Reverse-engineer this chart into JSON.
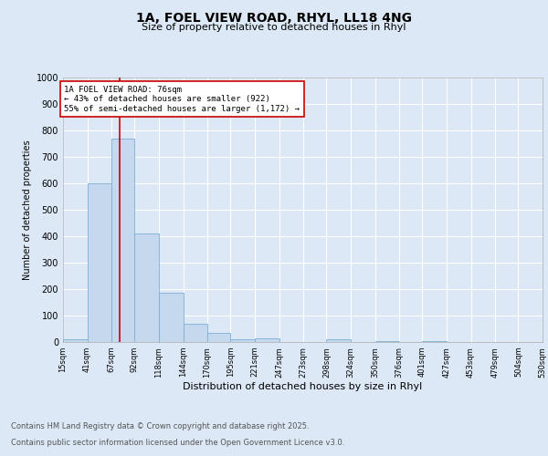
{
  "title_line1": "1A, FOEL VIEW ROAD, RHYL, LL18 4NG",
  "title_line2": "Size of property relative to detached houses in Rhyl",
  "xlabel": "Distribution of detached houses by size in Rhyl",
  "ylabel": "Number of detached properties",
  "bar_edges": [
    15,
    41,
    67,
    92,
    118,
    144,
    170,
    195,
    221,
    247,
    273,
    298,
    324,
    350,
    376,
    401,
    427,
    453,
    479,
    504,
    530
  ],
  "bar_heights": [
    10,
    600,
    770,
    410,
    185,
    70,
    35,
    10,
    15,
    0,
    0,
    10,
    0,
    5,
    0,
    5,
    0,
    0,
    0,
    0
  ],
  "bar_color": "#c5d8ed",
  "bar_edge_color": "#7aafd4",
  "property_line_x": 76,
  "property_line_color": "#cc0000",
  "annotation_text": "1A FOEL VIEW ROAD: 76sqm\n← 43% of detached houses are smaller (922)\n55% of semi-detached houses are larger (1,172) →",
  "annotation_box_color": "#ffffff",
  "annotation_box_edge_color": "#cc0000",
  "ylim": [
    0,
    1000
  ],
  "yticks": [
    0,
    100,
    200,
    300,
    400,
    500,
    600,
    700,
    800,
    900,
    1000
  ],
  "background_color": "#dce8f5",
  "plot_bg_color": "#dce8f5",
  "grid_color": "#ffffff",
  "footer_line1": "Contains HM Land Registry data © Crown copyright and database right 2025.",
  "footer_line2": "Contains public sector information licensed under the Open Government Licence v3.0."
}
